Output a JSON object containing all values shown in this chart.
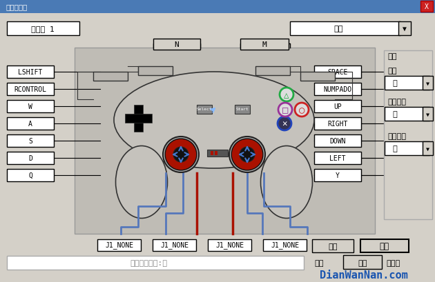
{
  "bg_color": "#d4d0c8",
  "window_title_bg": "#4a7ab5",
  "window_title_text": "控制器设置",
  "panel_bg": "#d4d0c8",
  "controller_bg": "#bfbcb5",
  "white": "#ffffff",
  "black": "#000000",
  "outline": "#333333",
  "left_labels": [
    "LSHIFT",
    "RCONTROL",
    "W",
    "A",
    "S",
    "D",
    "Q"
  ],
  "right_labels": [
    "SPACE",
    "NUMPADO",
    "UP",
    "RIGHT",
    "DOWN",
    "LEFT",
    "Y"
  ],
  "bottom_labels": [
    "J1_NONE",
    "J1_NONE",
    "J1_NONE",
    "J1_NONE"
  ],
  "combo_guanzhi": "关闭",
  "combo_wu": "无",
  "zhen_dong": "震动",
  "lei_xing": "类型",
  "da_xing_dian_ji": "大型电机",
  "xiao_xing_dian_ji": "小型电机",
  "shou_bing_hao": "手柄号 1",
  "qing_chu": "清除",
  "mo_ren": "默认",
  "qu_xiao": "取消",
  "que_ding": "确定",
  "bottom_status": "正在编辑按钮:无",
  "watermark": "DianWanNan.com",
  "watermark_blue": "#1a55b0",
  "select_text": "Select",
  "start_text": "Start",
  "face_triangle_color": "#22aa44",
  "face_circle_color": "#cc2222",
  "face_cross_color": "#2244bb",
  "face_square_color": "#993399",
  "analog_red": "#aa1100",
  "analog_blue_arrow": "#4477cc",
  "cable_blue": "#5577bb",
  "cable_red": "#aa1100"
}
